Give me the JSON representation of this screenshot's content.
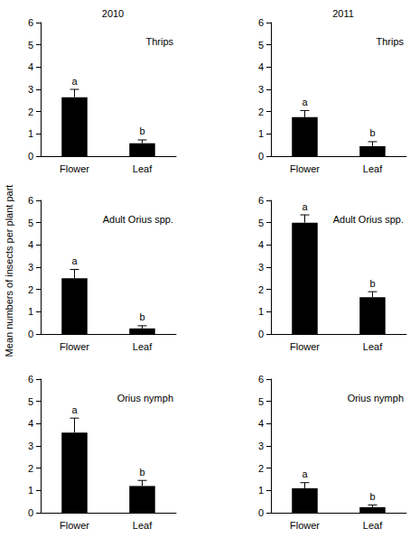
{
  "column_titles": [
    "2010",
    "2011"
  ],
  "ylabel": "Mean numbers of insects per plant part",
  "chart_data": [
    {
      "type": "bar",
      "title": "Thrips",
      "categories": [
        "Flower",
        "Leaf"
      ],
      "values": [
        2.65,
        0.58
      ],
      "errors": [
        0.35,
        0.15
      ],
      "letters": [
        "a",
        "b"
      ],
      "color": "#000000",
      "ylim": [
        0,
        6
      ],
      "yticks": [
        0,
        1,
        2,
        3,
        4,
        5,
        6
      ],
      "grid": false
    },
    {
      "type": "bar",
      "title": "Thrips",
      "categories": [
        "Flower",
        "Leaf"
      ],
      "values": [
        1.75,
        0.45
      ],
      "errors": [
        0.3,
        0.2
      ],
      "letters": [
        "a",
        "b"
      ],
      "color": "#000000",
      "ylim": [
        0,
        6
      ],
      "yticks": [
        0,
        1,
        2,
        3,
        4,
        5,
        6
      ],
      "grid": false
    },
    {
      "type": "bar",
      "title": "Adult Orius spp.",
      "categories": [
        "Flower",
        "Leaf"
      ],
      "values": [
        2.5,
        0.25
      ],
      "errors": [
        0.4,
        0.12
      ],
      "letters": [
        "a",
        "b"
      ],
      "color": "#000000",
      "ylim": [
        0,
        6
      ],
      "yticks": [
        0,
        1,
        2,
        3,
        4,
        5,
        6
      ],
      "grid": false
    },
    {
      "type": "bar",
      "title": "Adult Orius spp.",
      "categories": [
        "Flower",
        "Leaf"
      ],
      "values": [
        5.0,
        1.65
      ],
      "errors": [
        0.35,
        0.25
      ],
      "letters": [
        "a",
        "b"
      ],
      "color": "#000000",
      "ylim": [
        0,
        6
      ],
      "yticks": [
        0,
        1,
        2,
        3,
        4,
        5,
        6
      ],
      "grid": false
    },
    {
      "type": "bar",
      "title": "Orius nymph",
      "categories": [
        "Flower",
        "Leaf"
      ],
      "values": [
        3.6,
        1.2
      ],
      "errors": [
        0.65,
        0.25
      ],
      "letters": [
        "a",
        "b"
      ],
      "color": "#000000",
      "ylim": [
        0,
        6
      ],
      "yticks": [
        0,
        1,
        2,
        3,
        4,
        5,
        6
      ],
      "grid": false
    },
    {
      "type": "bar",
      "title": "Orius nymph",
      "categories": [
        "Flower",
        "Leaf"
      ],
      "values": [
        1.1,
        0.25
      ],
      "errors": [
        0.25,
        0.1
      ],
      "letters": [
        "a",
        "b"
      ],
      "color": "#000000",
      "ylim": [
        0,
        6
      ],
      "yticks": [
        0,
        1,
        2,
        3,
        4,
        5,
        6
      ],
      "grid": false
    }
  ]
}
